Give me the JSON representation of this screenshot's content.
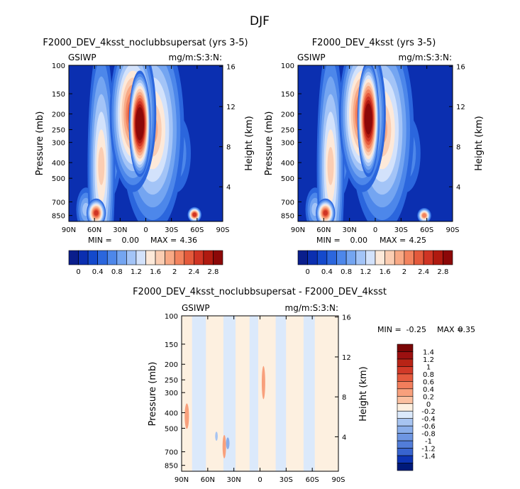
{
  "figure_title": "DJF",
  "colors": {
    "positive": [
      "#fdf0e0",
      "#fddcc4",
      "#fbc0a0",
      "#f8a07c",
      "#f27e5c",
      "#e55a3e",
      "#d23a28",
      "#b82416",
      "#9c1010",
      "#7a0606"
    ],
    "negative": [
      "#dbe9fb",
      "#c2d8f7",
      "#a7c4f1",
      "#8aaeea",
      "#6e96e2",
      "#527dd9",
      "#3864cf",
      "#1f4bc4",
      "#0d34b4",
      "#06219a",
      "#001a7a"
    ]
  },
  "chart_data": [
    {
      "type": "heatmap",
      "title": "F2000_DEV_4ksst_noclubbsupersat  (yrs 3-5)",
      "variable": "GSIWP",
      "units": "mg/m:S:3:N:",
      "xlabel": "",
      "ylabel": "Pressure (mb)",
      "y2label": "Height (km)",
      "x_ticks": [
        "90N",
        "60N",
        "30N",
        "0",
        "30S",
        "60S",
        "90S"
      ],
      "x_range": [
        90,
        -90
      ],
      "y_ticks": [
        100,
        150,
        200,
        250,
        300,
        400,
        500,
        700,
        850
      ],
      "y_range": [
        100,
        925
      ],
      "height_ticks": [
        16,
        12,
        8,
        4
      ],
      "min_label": "MIN =",
      "min": "0.00",
      "max_label": "MAX =",
      "max": "4.36",
      "colorbar_labels": [
        "0",
        "0.4",
        "0.8",
        "1.2",
        "1.6",
        "2",
        "2.4",
        "2.8"
      ],
      "colorbar_levels": 16,
      "features": [
        {
          "lat": 7,
          "p": 230,
          "value": 3.4,
          "dlat": 7,
          "dp": 85
        },
        {
          "lat": 15,
          "p": 200,
          "value": 2.3,
          "dlat": 16,
          "dp": 150
        },
        {
          "lat": -8,
          "p": 250,
          "value": 1.5,
          "dlat": 22,
          "dp": 230
        },
        {
          "lat": -35,
          "p": 350,
          "value": 0.6,
          "dlat": 10,
          "dp": 100
        },
        {
          "lat": 52,
          "p": 420,
          "value": 1.4,
          "dlat": 9,
          "dp": 280
        },
        {
          "lat": 45,
          "p": 300,
          "value": 0.9,
          "dlat": 10,
          "dp": 120
        },
        {
          "lat": 58,
          "p": 820,
          "value": 2.3,
          "dlat": 6,
          "dp": 90
        },
        {
          "lat": -57,
          "p": 840,
          "value": 2.2,
          "dlat": 4,
          "dp": 45
        },
        {
          "lat": 70,
          "p": 780,
          "value": 0.8,
          "dlat": 6,
          "dp": 130
        }
      ]
    },
    {
      "type": "heatmap",
      "title": "F2000_DEV_4ksst  (yrs 3-5)",
      "variable": "GSIWP",
      "units": "mg/m:S:3:N:",
      "xlabel": "",
      "ylabel": "Pressure (mb)",
      "y2label": "Height (km)",
      "x_ticks": [
        "90N",
        "60N",
        "30N",
        "0",
        "30S",
        "60S",
        "90S"
      ],
      "x_range": [
        90,
        -90
      ],
      "y_ticks": [
        100,
        150,
        200,
        250,
        300,
        400,
        500,
        700,
        850
      ],
      "y_range": [
        100,
        925
      ],
      "height_ticks": [
        16,
        12,
        8,
        4
      ],
      "min_label": "MIN =",
      "min": "0.00",
      "max_label": "MAX =",
      "max": "4.25",
      "colorbar_labels": [
        "0",
        "0.4",
        "0.8",
        "1.2",
        "1.6",
        "2",
        "2.4",
        "2.8"
      ],
      "colorbar_levels": 16,
      "features": [
        {
          "lat": 8,
          "p": 215,
          "value": 3.2,
          "dlat": 7,
          "dp": 85
        },
        {
          "lat": 15,
          "p": 200,
          "value": 2.2,
          "dlat": 16,
          "dp": 150
        },
        {
          "lat": -8,
          "p": 250,
          "value": 1.5,
          "dlat": 22,
          "dp": 230
        },
        {
          "lat": -35,
          "p": 350,
          "value": 0.6,
          "dlat": 10,
          "dp": 100
        },
        {
          "lat": 52,
          "p": 420,
          "value": 1.4,
          "dlat": 9,
          "dp": 280
        },
        {
          "lat": 45,
          "p": 300,
          "value": 0.9,
          "dlat": 10,
          "dp": 120
        },
        {
          "lat": 58,
          "p": 820,
          "value": 2.3,
          "dlat": 6,
          "dp": 90
        },
        {
          "lat": -57,
          "p": 850,
          "value": 1.9,
          "dlat": 4,
          "dp": 45
        },
        {
          "lat": 70,
          "p": 780,
          "value": 0.8,
          "dlat": 6,
          "dp": 130
        }
      ]
    },
    {
      "type": "heatmap",
      "title": "F2000_DEV_4ksst_noclubbsupersat - F2000_DEV_4ksst",
      "variable": "GSIWP",
      "units": "mg/m:S:3:N:",
      "xlabel": "",
      "ylabel": "Pressure (mb)",
      "y2label": "Height (km)",
      "x_ticks": [
        "90N",
        "60N",
        "30N",
        "0",
        "30S",
        "60S",
        "90S"
      ],
      "x_range": [
        90,
        -90
      ],
      "y_ticks": [
        100,
        150,
        200,
        250,
        300,
        400,
        500,
        700,
        850
      ],
      "y_range": [
        100,
        925
      ],
      "height_ticks": [
        16,
        12,
        8,
        4
      ],
      "min_label": "MIN =",
      "min": "-0.25",
      "max_label": "MAX =",
      "max": "0.35",
      "colorbar_labels": [
        "1.4",
        "1.2",
        "1",
        "0.8",
        "0.6",
        "0.4",
        "0.2",
        "0",
        "-0.2",
        "-0.4",
        "-0.6",
        "-0.8",
        "-1",
        "-1.2",
        "-1.4"
      ],
      "bands": [
        {
          "lat_from": 90,
          "lat_to": 78,
          "sign": 1
        },
        {
          "lat_from": 78,
          "lat_to": 62,
          "sign": -1
        },
        {
          "lat_from": 62,
          "lat_to": 42,
          "sign": 1
        },
        {
          "lat_from": 42,
          "lat_to": 28,
          "sign": -1
        },
        {
          "lat_from": 28,
          "lat_to": 12,
          "sign": 1
        },
        {
          "lat_from": 12,
          "lat_to": 2,
          "sign": -1
        },
        {
          "lat_from": 2,
          "lat_to": -18,
          "sign": 1
        },
        {
          "lat_from": -18,
          "lat_to": -30,
          "sign": -1
        },
        {
          "lat_from": -30,
          "lat_to": -50,
          "sign": 1
        },
        {
          "lat_from": -50,
          "lat_to": -63,
          "sign": -1
        },
        {
          "lat_from": -63,
          "lat_to": -90,
          "sign": 1
        }
      ],
      "features": [
        {
          "lat": 84,
          "p": 420,
          "value": 0.3,
          "dlat": 2.5,
          "dp": 70
        },
        {
          "lat": 41,
          "p": 650,
          "value": 0.25,
          "dlat": 2,
          "dp": 100
        },
        {
          "lat": -4,
          "p": 260,
          "value": 0.3,
          "dlat": 2,
          "dp": 55
        },
        {
          "lat": 37,
          "p": 620,
          "value": -0.25,
          "dlat": 2,
          "dp": 50
        },
        {
          "lat": 50,
          "p": 560,
          "value": -0.22,
          "dlat": 1.5,
          "dp": 35
        }
      ]
    }
  ]
}
